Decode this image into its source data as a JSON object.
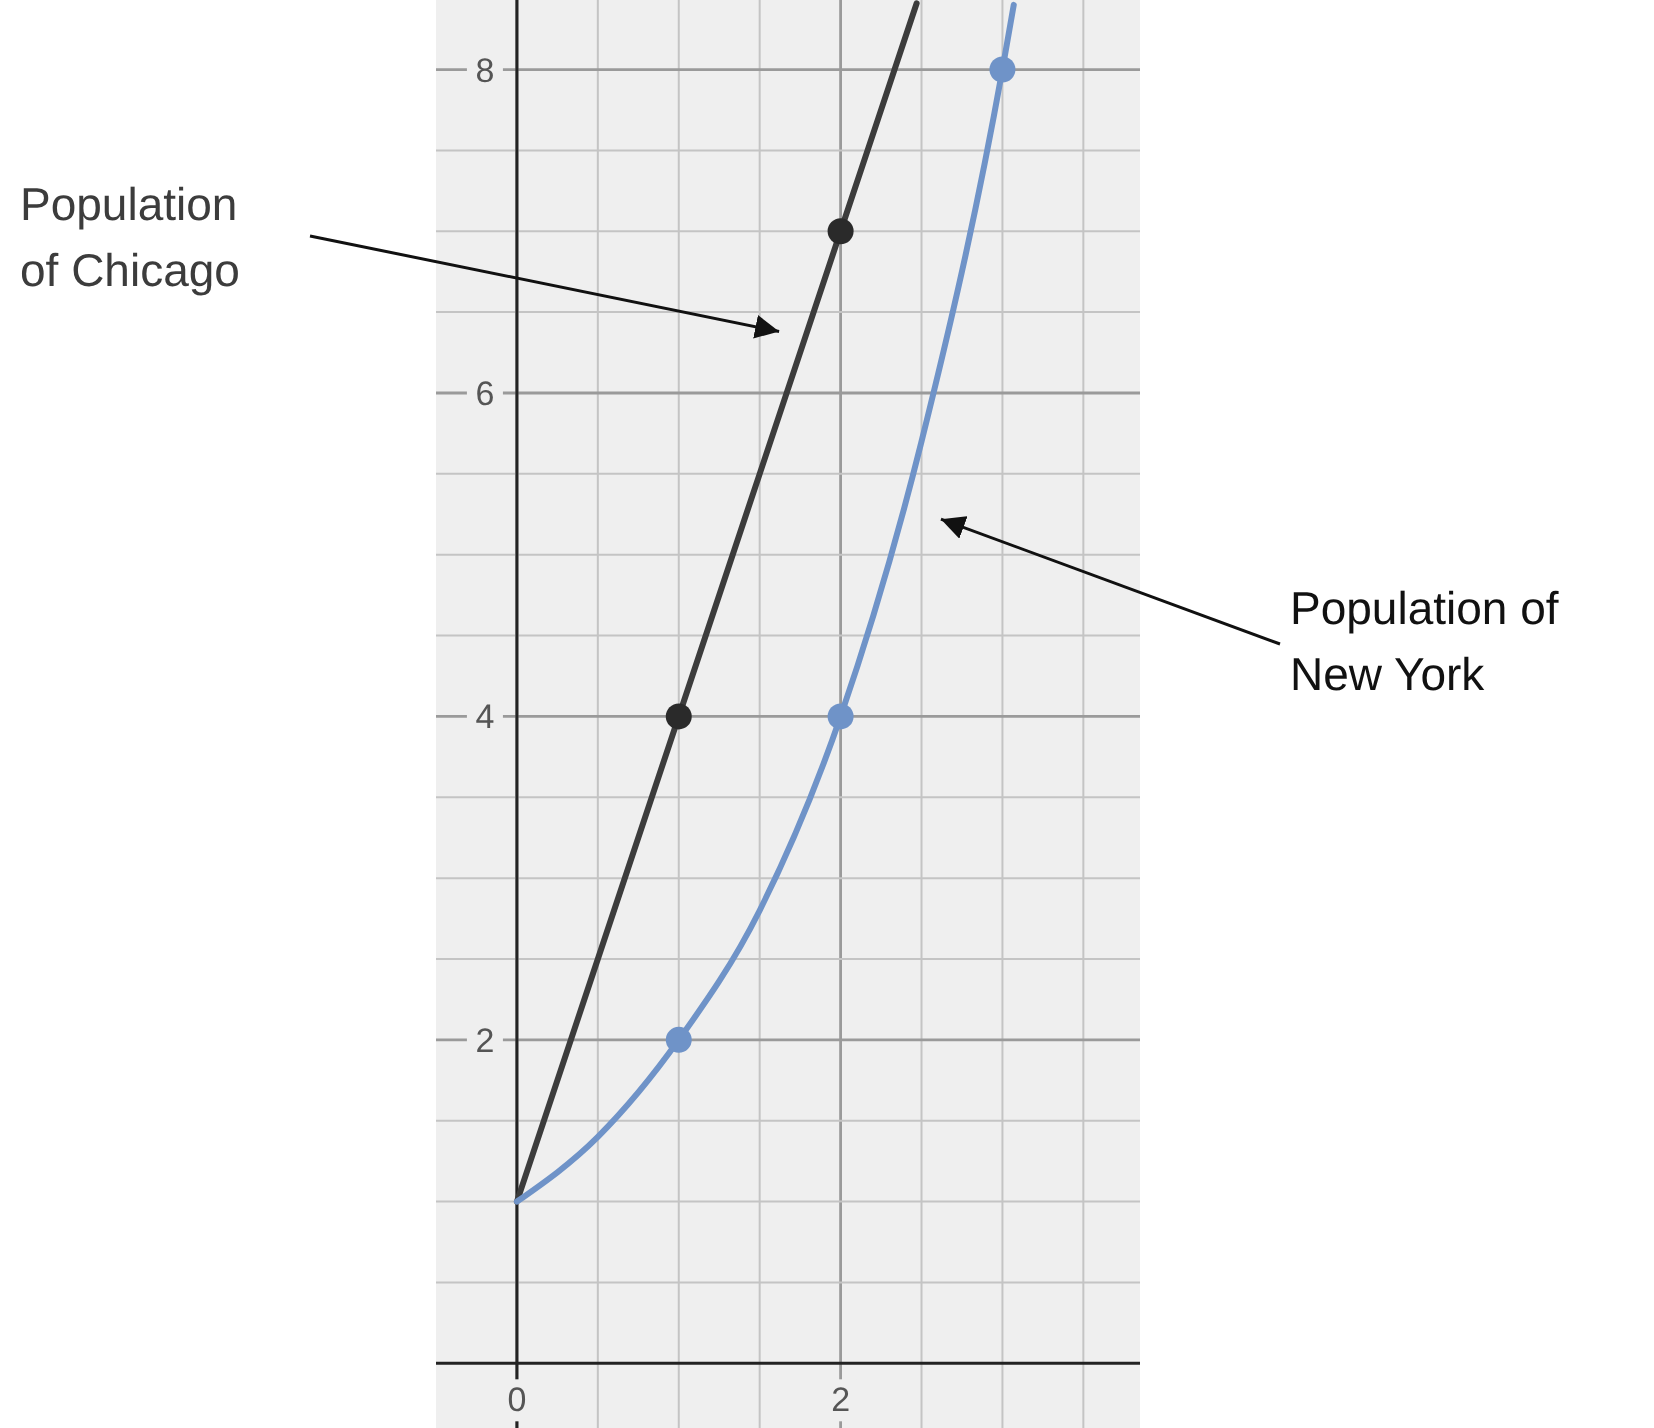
{
  "chart_data": {
    "type": "line",
    "xlim": [
      -0.5,
      3.85
    ],
    "ylim": [
      -0.4,
      8.43
    ],
    "xticks": [
      {
        "value": 0,
        "label": "0"
      },
      {
        "value": 0.5,
        "label": null
      },
      {
        "value": 1,
        "label": null
      },
      {
        "value": 1.5,
        "label": null
      },
      {
        "value": 2,
        "label": "2"
      },
      {
        "value": 2.5,
        "label": null
      },
      {
        "value": 3,
        "label": null
      },
      {
        "value": 3.5,
        "label": null
      }
    ],
    "yticks": [
      {
        "value": 0.5,
        "label": null
      },
      {
        "value": 1,
        "label": null
      },
      {
        "value": 1.5,
        "label": null
      },
      {
        "value": 2,
        "label": "2"
      },
      {
        "value": 2.5,
        "label": null
      },
      {
        "value": 3,
        "label": null
      },
      {
        "value": 3.5,
        "label": null
      },
      {
        "value": 4,
        "label": "4"
      },
      {
        "value": 4.5,
        "label": null
      },
      {
        "value": 5,
        "label": null
      },
      {
        "value": 5.5,
        "label": null
      },
      {
        "value": 6,
        "label": "6"
      },
      {
        "value": 6.5,
        "label": null
      },
      {
        "value": 7,
        "label": null
      },
      {
        "value": 7.5,
        "label": null
      },
      {
        "value": 8,
        "label": "8"
      }
    ],
    "grid": true,
    "legend": false,
    "series": [
      {
        "name": "Population of Chicago",
        "type": "line",
        "marker": "none",
        "color": "#3c3c3c",
        "x": [
          0,
          1,
          2,
          2.47
        ],
        "values": [
          1,
          4,
          7,
          8.41
        ]
      },
      {
        "name": "Population of New York",
        "type": "line",
        "marker": "none",
        "color": "#6f93c8",
        "x": [
          0,
          0.5,
          1,
          1.5,
          2,
          2.5,
          3,
          3.07
        ],
        "values": [
          1,
          1.4,
          2,
          2.8,
          4,
          5.7,
          8,
          8.4
        ]
      },
      {
        "type": "scatter",
        "marker": "circle",
        "color": "#2a2a2a",
        "x": [
          1,
          2
        ],
        "values": [
          4,
          7
        ]
      },
      {
        "type": "scatter",
        "marker": "circle",
        "color": "#6f93c8",
        "x": [
          1,
          2,
          3
        ],
        "values": [
          2,
          4,
          8
        ]
      }
    ]
  }
}
